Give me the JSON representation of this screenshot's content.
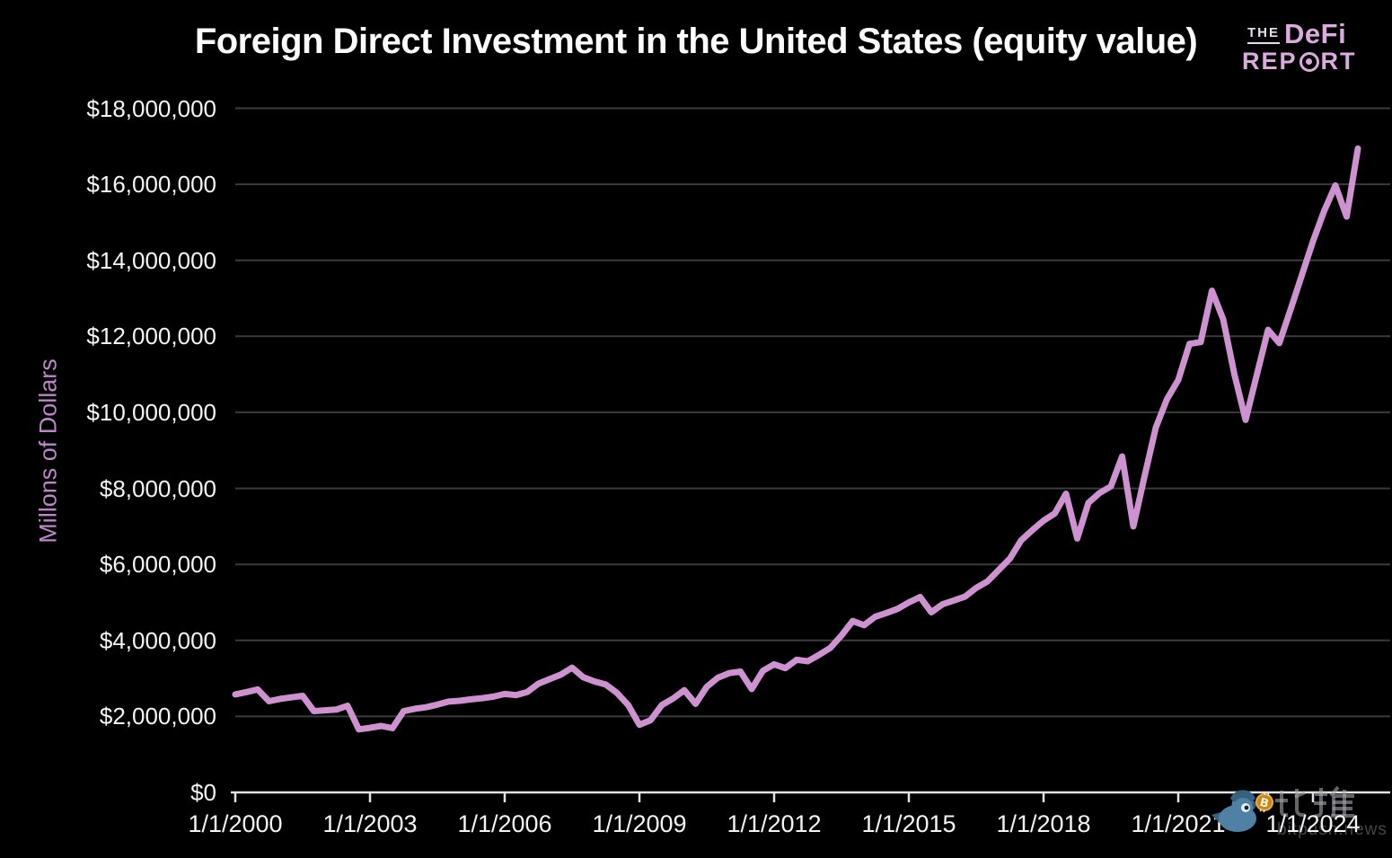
{
  "page": {
    "background": "#000000"
  },
  "logo": {
    "the": "THE",
    "defi": "DeFi",
    "report_left": "REP",
    "report_right": "RT",
    "color_light": "#eadcee",
    "color_main": "#dcaade"
  },
  "watermark": {
    "cjk": "比推",
    "latin": "bitpush.news",
    "icons": [
      "bird-icon",
      "bitcoin-coin-icon"
    ]
  },
  "chart_data": {
    "type": "line",
    "title": "Foreign Direct Investment in the United States (equity value)",
    "xlabel": "",
    "ylabel": "Millons of Dollars",
    "grid": "horizontal",
    "legend": "none",
    "ylim": [
      0,
      18000000
    ],
    "x_range_years": [
      2000,
      2025.25
    ],
    "x_tick_labels": [
      "1/1/2000",
      "1/1/2003",
      "1/1/2006",
      "1/1/2009",
      "1/1/2012",
      "1/1/2015",
      "1/1/2018",
      "1/1/2021",
      "1/1/2024"
    ],
    "x_tick_years": [
      2000,
      2003,
      2006,
      2009,
      2012,
      2015,
      2018,
      2021,
      2024
    ],
    "y_tick_labels": [
      "$0",
      "$2,000,000",
      "$4,000,000",
      "$6,000,000",
      "$8,000,000",
      "$10,000,000",
      "$12,000,000",
      "$14,000,000",
      "$16,000,000",
      "$18,000,000"
    ],
    "y_tick_values": [
      0,
      2000000,
      4000000,
      6000000,
      8000000,
      10000000,
      12000000,
      14000000,
      16000000,
      18000000
    ],
    "colors": {
      "line": "#cf92d0",
      "grid": "#3b3b3d",
      "axis": "#e2e2e2",
      "tick_text": "#f4f4f4",
      "y_title_text": "#bd86c8",
      "title_text": "#fcfcfc"
    },
    "series": [
      {
        "name": "Foreign Direct Investment in the United States (equity value)",
        "frequency": "quarterly",
        "start": "1/1/2000",
        "values_millions_usd": [
          2580000,
          2640000,
          2710000,
          2400000,
          2460000,
          2500000,
          2540000,
          2140000,
          2160000,
          2180000,
          2280000,
          1660000,
          1700000,
          1750000,
          1690000,
          2140000,
          2200000,
          2240000,
          2310000,
          2390000,
          2410000,
          2450000,
          2480000,
          2520000,
          2590000,
          2560000,
          2640000,
          2860000,
          2980000,
          3100000,
          3280000,
          3030000,
          2920000,
          2840000,
          2620000,
          2300000,
          1780000,
          1900000,
          2300000,
          2470000,
          2690000,
          2330000,
          2780000,
          3020000,
          3140000,
          3180000,
          2720000,
          3200000,
          3370000,
          3270000,
          3490000,
          3450000,
          3620000,
          3800000,
          4130000,
          4510000,
          4400000,
          4620000,
          4720000,
          4830000,
          5000000,
          5140000,
          4740000,
          4950000,
          5050000,
          5150000,
          5380000,
          5550000,
          5850000,
          6150000,
          6630000,
          6900000,
          7150000,
          7340000,
          7860000,
          6680000,
          7620000,
          7880000,
          8050000,
          8840000,
          7000000,
          8320000,
          9600000,
          10350000,
          10850000,
          11800000,
          11850000,
          13200000,
          12450000,
          11000000,
          9800000,
          10990000,
          12170000,
          11820000,
          12700000,
          13600000,
          14500000,
          15300000,
          15970000,
          15150000,
          16940000
        ]
      }
    ]
  }
}
